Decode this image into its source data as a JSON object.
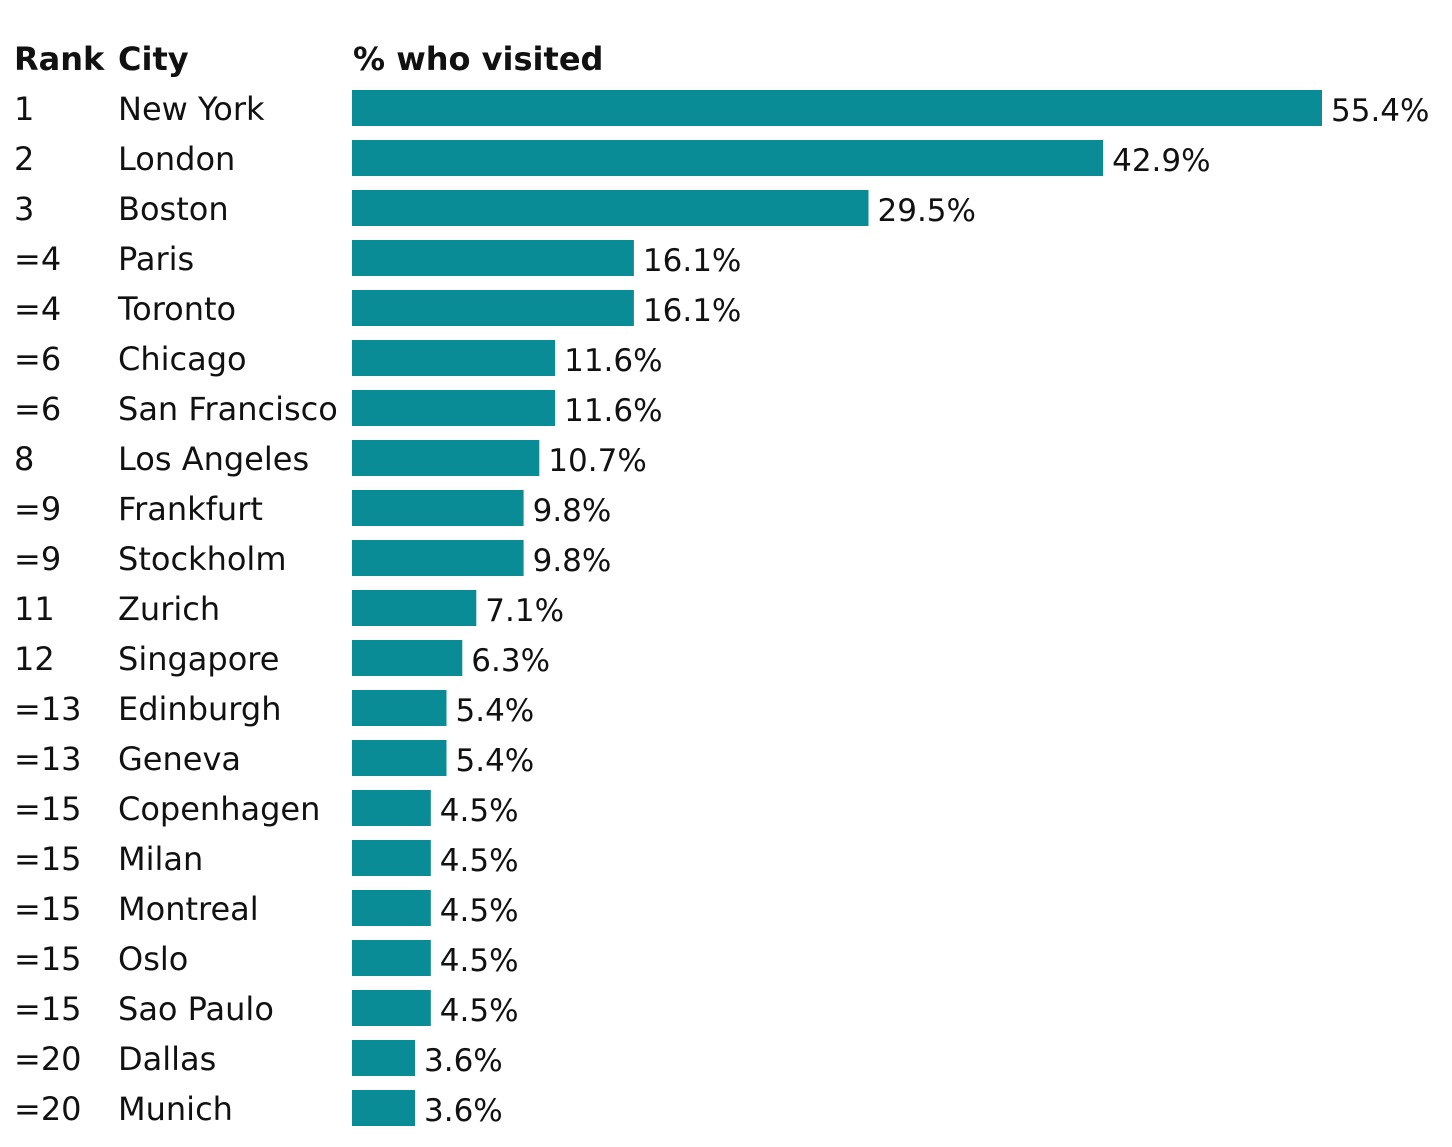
{
  "chart_data": {
    "type": "bar",
    "orientation": "horizontal",
    "columns": {
      "rank": "Rank",
      "city": "City",
      "value": "% who visited"
    },
    "bar_color": "#0a8c96",
    "value_suffix": "%",
    "xlim": [
      0,
      55.4
    ],
    "rows": [
      {
        "rank": "1",
        "city": "New York",
        "value": 55.4,
        "label": "55.4%"
      },
      {
        "rank": "2",
        "city": "London",
        "value": 42.9,
        "label": "42.9%"
      },
      {
        "rank": "3",
        "city": "Boston",
        "value": 29.5,
        "label": "29.5%"
      },
      {
        "rank": "=4",
        "city": "Paris",
        "value": 16.1,
        "label": "16.1%"
      },
      {
        "rank": "=4",
        "city": "Toronto",
        "value": 16.1,
        "label": "16.1%"
      },
      {
        "rank": "=6",
        "city": "Chicago",
        "value": 11.6,
        "label": "11.6%"
      },
      {
        "rank": "=6",
        "city": "San Francisco",
        "value": 11.6,
        "label": "11.6%"
      },
      {
        "rank": "8",
        "city": "Los Angeles",
        "value": 10.7,
        "label": "10.7%"
      },
      {
        "rank": "=9",
        "city": "Frankfurt",
        "value": 9.8,
        "label": "9.8%"
      },
      {
        "rank": "=9",
        "city": "Stockholm",
        "value": 9.8,
        "label": "9.8%"
      },
      {
        "rank": "11",
        "city": "Zurich",
        "value": 7.1,
        "label": "7.1%"
      },
      {
        "rank": "12",
        "city": "Singapore",
        "value": 6.3,
        "label": "6.3%"
      },
      {
        "rank": "=13",
        "city": "Edinburgh",
        "value": 5.4,
        "label": "5.4%"
      },
      {
        "rank": "=13",
        "city": "Geneva",
        "value": 5.4,
        "label": "5.4%"
      },
      {
        "rank": "=15",
        "city": "Copenhagen",
        "value": 4.5,
        "label": "4.5%"
      },
      {
        "rank": "=15",
        "city": "Milan",
        "value": 4.5,
        "label": "4.5%"
      },
      {
        "rank": "=15",
        "city": "Montreal",
        "value": 4.5,
        "label": "4.5%"
      },
      {
        "rank": "=15",
        "city": "Oslo",
        "value": 4.5,
        "label": "4.5%"
      },
      {
        "rank": "=15",
        "city": "Sao Paulo",
        "value": 4.5,
        "label": "4.5%"
      },
      {
        "rank": "=20",
        "city": "Dallas",
        "value": 3.6,
        "label": "3.6%"
      },
      {
        "rank": "=20",
        "city": "Munich",
        "value": 3.6,
        "label": "3.6%"
      }
    ]
  }
}
